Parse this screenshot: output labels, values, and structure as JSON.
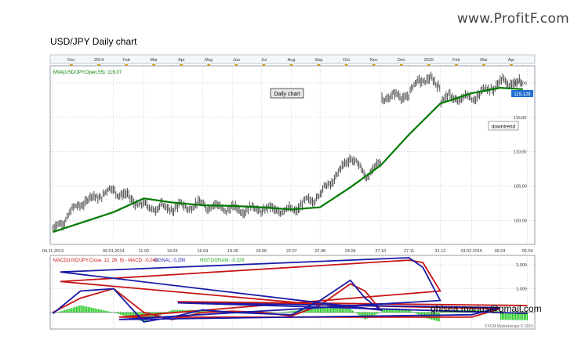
{
  "site": {
    "logo_text": "www.ProfitF.com"
  },
  "title": "USD/JPY Daily chart",
  "price_panel": {
    "indicator_label": "MVA(USD/JPY.Open,55): 119,07",
    "annotation_box": "Daily chart",
    "annotation_trend": "downtrend",
    "current_price_label": "119,128"
  },
  "macd_panel": {
    "label_main": "MACD(USD/JPY.Close, 12, 26, 9) - MACD: -0,040",
    "label_signal": "SIGNAL: 0,290",
    "label_hist": "HISTOGRAM: -0,329",
    "watermark": "ghisea.marius@gmail.com",
    "copyright": "FXCM Marketscope © 2015"
  },
  "colors": {
    "price_bars": "#3c3c3c",
    "mva": "#007a00",
    "macd": "#1a1aa8",
    "signal": "#c81414",
    "histogram": "#1ec81e",
    "grid": "#b4bcc8"
  },
  "chart_data": {
    "type": "line",
    "title": "USD/JPY Daily chart",
    "top_month_labels": [
      "Dec",
      "2014",
      "Feb",
      "Mar",
      "Apr",
      "May",
      "Jun",
      "Jul",
      "Aug",
      "Sep",
      "Oct",
      "Nov",
      "Dec",
      "2015",
      "Feb",
      "Mar",
      "Apr"
    ],
    "x_tick_labels": [
      "04.11.2013",
      "09.01.2014",
      "11.02",
      "14.03",
      "16.04",
      "19.05",
      "19.06",
      "22.07",
      "22.08",
      "24.09",
      "27.10",
      "27.11",
      "31.12",
      "03.02.2015",
      "06.03",
      "05.04"
    ],
    "price_y_ticks": [
      "100,00",
      "105,00",
      "110,00",
      "115,00",
      "120,00"
    ],
    "price_ylim": [
      96.5,
      122.5
    ],
    "series": [
      {
        "name": "USD/JPY",
        "style": "price bars",
        "x": [
          "04.11.2013",
          "04.12.2013",
          "09.01.2014",
          "11.02",
          "14.03",
          "16.04",
          "19.05",
          "19.06",
          "22.07",
          "22.08",
          "15.09",
          "24.09",
          "10.10",
          "27.10",
          "04.11",
          "27.11",
          "08.12",
          "31.12",
          "15.01",
          "03.02.2015",
          "06.03",
          "13.03",
          "20.03",
          "27.03",
          "31.03"
        ],
        "values": [
          98.5,
          102.5,
          104.5,
          102.0,
          101.8,
          102.3,
          101.6,
          101.7,
          101.4,
          103.8,
          107.5,
          109.5,
          106.5,
          108.2,
          114.5,
          118.2,
          120.7,
          119.8,
          117.6,
          117.8,
          120.0,
          121.0,
          119.8,
          120.1,
          119.1
        ]
      },
      {
        "name": "MVA(USD/JPY.Open,55)",
        "x": [
          "04.11.2013",
          "09.01.2014",
          "11.02",
          "14.03",
          "16.04",
          "19.05",
          "19.06",
          "22.07",
          "22.08",
          "24.09",
          "27.10",
          "27.11",
          "31.12",
          "03.02.2015",
          "06.03",
          "31.03"
        ],
        "values": [
          98.3,
          101.2,
          103.2,
          102.6,
          102.2,
          102.1,
          101.9,
          101.6,
          101.9,
          104.8,
          108.0,
          112.5,
          117.0,
          118.5,
          119.3,
          119.1
        ]
      }
    ],
    "macd": {
      "y_ticks": [
        "2,000",
        "1,000",
        "0,000"
      ],
      "ylim": [
        -0.7,
        2.4
      ],
      "x": [
        "04.11.2013",
        "04.12.2013",
        "09.01.2014",
        "11.02",
        "14.03",
        "16.04",
        "19.05",
        "19.06",
        "22.07",
        "22.08",
        "24.09",
        "10.10",
        "27.10",
        "12.11",
        "27.11",
        "12.12",
        "31.12",
        "15.01",
        "03.02.2015",
        "06.03",
        "20.03",
        "05.04"
      ],
      "macd": [
        -0.05,
        0.9,
        1.0,
        -0.4,
        -0.2,
        0.1,
        0.0,
        -0.05,
        -0.1,
        0.5,
        1.35,
        0.6,
        0.1,
        1.7,
        2.3,
        1.9,
        0.5,
        -0.3,
        -0.1,
        0.2,
        0.4,
        -0.04
      ],
      "signal": [
        0.0,
        0.6,
        1.0,
        0.0,
        -0.3,
        0.0,
        0.05,
        0.0,
        -0.15,
        0.3,
        1.2,
        0.9,
        0.1,
        1.3,
        2.2,
        2.1,
        0.9,
        -0.2,
        -0.2,
        0.15,
        0.45,
        0.29
      ],
      "histogram": [
        -0.05,
        0.3,
        0.0,
        -0.4,
        0.1,
        0.1,
        -0.05,
        -0.05,
        0.05,
        0.2,
        0.15,
        -0.3,
        0.0,
        0.4,
        0.1,
        -0.2,
        -0.4,
        -0.1,
        0.1,
        0.05,
        -0.05,
        -0.33
      ]
    }
  }
}
